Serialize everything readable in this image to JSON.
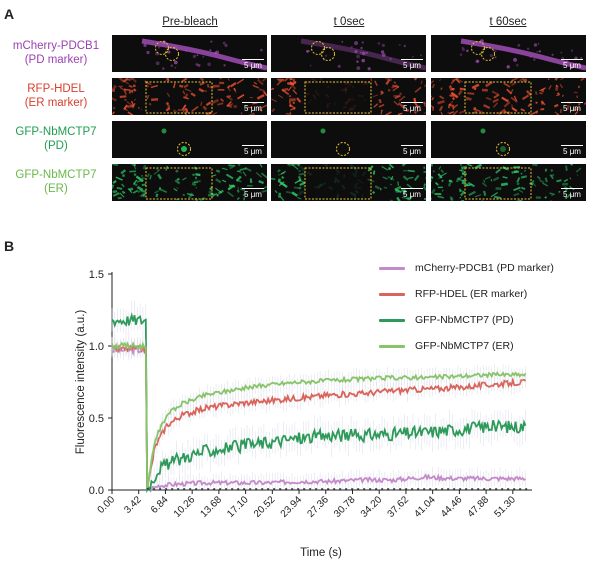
{
  "panel_a": {
    "label": "A",
    "columns": [
      "Pre-bleach",
      "t 0sec",
      "t 60sec"
    ],
    "rows": [
      {
        "line1": "mCherry-PDCB1",
        "line2": "(PD marker)",
        "color": "#9b3fb5",
        "fill": "#b455c9"
      },
      {
        "line1": "RFP-HDEL",
        "line2": "(ER marker)",
        "color": "#d8402e",
        "fill": "#ff5533"
      },
      {
        "line1": "GFP-NbMCTP7",
        "line2": "(PD)",
        "color": "#1e9e4e",
        "fill": "#22c95a"
      },
      {
        "line1": "GFP-NbMCTP7",
        "line2": "(ER)",
        "color": "#6ab84a",
        "fill": "#2ecf6a"
      }
    ],
    "scale_bar": "5 μm",
    "roi_color": "#e8c23a"
  },
  "panel_b": {
    "label": "B"
  },
  "chart_data": {
    "type": "line",
    "xlabel": "Time (s)",
    "ylabel": "Fluorescence intensity (a.u.)",
    "xlim": [
      0,
      53.5
    ],
    "ylim": [
      0,
      1.5
    ],
    "yticks": [
      "0.0",
      "0.5",
      "1.0",
      "1.5"
    ],
    "xticks": [
      "0.00",
      "3.42",
      "6.84",
      "10.26",
      "13.68",
      "17.10",
      "20.52",
      "23.94",
      "27.36",
      "30.78",
      "34.20",
      "37.62",
      "41.04",
      "44.46",
      "47.88",
      "51.30"
    ],
    "xtick_values": [
      0.0,
      3.42,
      6.84,
      10.26,
      13.68,
      17.1,
      20.52,
      23.94,
      27.36,
      30.78,
      34.2,
      37.62,
      41.04,
      44.46,
      47.88,
      51.3
    ],
    "bleach_time": 4.5,
    "series": [
      {
        "name": "mCherry-PDCB1 (PD marker)",
        "color": "#c58ac9",
        "pre": 0.97,
        "x": [
          4.5,
          6,
          8,
          12,
          16,
          20,
          24,
          28,
          32,
          36,
          40,
          44,
          48,
          53
        ],
        "y": [
          0.0,
          0.03,
          0.04,
          0.05,
          0.05,
          0.05,
          0.06,
          0.06,
          0.07,
          0.07,
          0.09,
          0.08,
          0.08,
          0.08
        ]
      },
      {
        "name": "RFP-HDEL (ER marker)",
        "color": "#d9645a",
        "pre": 0.98,
        "x": [
          4.5,
          5.5,
          7,
          9,
          12,
          16,
          20,
          24,
          28,
          32,
          36,
          40,
          44,
          48,
          53
        ],
        "y": [
          0.0,
          0.3,
          0.45,
          0.52,
          0.57,
          0.6,
          0.62,
          0.64,
          0.66,
          0.67,
          0.69,
          0.7,
          0.71,
          0.73,
          0.75
        ]
      },
      {
        "name": "GFP-NbMCTP7 (PD)",
        "color": "#2e9a5a",
        "pre": 1.18,
        "x": [
          4.5,
          6,
          8,
          10,
          12,
          16,
          20,
          24,
          28,
          32,
          36,
          40,
          44,
          48,
          53
        ],
        "y": [
          0.0,
          0.15,
          0.2,
          0.24,
          0.27,
          0.3,
          0.33,
          0.36,
          0.38,
          0.38,
          0.39,
          0.4,
          0.42,
          0.44,
          0.44
        ]
      },
      {
        "name": "GFP-NbMCTP7 (ER)",
        "color": "#88c46a",
        "pre": 1.0,
        "x": [
          4.5,
          5.5,
          7,
          9,
          12,
          16,
          20,
          24,
          28,
          32,
          36,
          40,
          44,
          48,
          53
        ],
        "y": [
          0.0,
          0.35,
          0.52,
          0.6,
          0.66,
          0.7,
          0.73,
          0.75,
          0.76,
          0.77,
          0.78,
          0.78,
          0.79,
          0.8,
          0.8
        ]
      }
    ],
    "legend_position": "right"
  }
}
